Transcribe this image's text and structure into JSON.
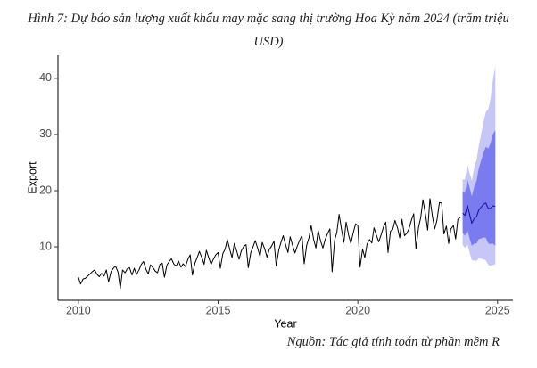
{
  "chart_data": {
    "type": "line",
    "title": "Hình 7: Dự báo sản lượng xuất khẩu may mặc sang thị trường Hoa Kỳ năm 2024 (trăm triệu USD)",
    "source": "Nguồn: Tác giả tính toán từ phần mềm R",
    "x_label": "Year",
    "y_label": "Export",
    "xlim": [
      2009.27,
      2025.55
    ],
    "ylim": [
      0.5,
      44.1
    ],
    "xticks": [
      2010,
      2015,
      2020,
      2025
    ],
    "yticks": [
      10,
      20,
      30,
      40
    ],
    "grid": false,
    "series": [
      {
        "color": "#000000",
        "x": [
          2010,
          2010.08,
          2010.17,
          2010.25,
          2010.33,
          2010.42,
          2010.5,
          2010.58,
          2010.67,
          2010.75,
          2010.83,
          2010.92,
          2011,
          2011.08,
          2011.17,
          2011.25,
          2011.33,
          2011.42,
          2011.5,
          2011.58,
          2011.67,
          2011.75,
          2011.83,
          2011.92,
          2012,
          2012.08,
          2012.17,
          2012.25,
          2012.33,
          2012.42,
          2012.5,
          2012.58,
          2012.67,
          2012.75,
          2012.83,
          2012.92,
          2013,
          2013.08,
          2013.17,
          2013.25,
          2013.33,
          2013.42,
          2013.5,
          2013.58,
          2013.67,
          2013.75,
          2013.83,
          2013.92,
          2014,
          2014.08,
          2014.17,
          2014.25,
          2014.33,
          2014.42,
          2014.5,
          2014.58,
          2014.67,
          2014.75,
          2014.83,
          2014.92,
          2015,
          2015.08,
          2015.17,
          2015.25,
          2015.33,
          2015.42,
          2015.5,
          2015.58,
          2015.67,
          2015.75,
          2015.83,
          2015.92,
          2016,
          2016.08,
          2016.17,
          2016.25,
          2016.33,
          2016.42,
          2016.5,
          2016.58,
          2016.67,
          2016.75,
          2016.83,
          2016.92,
          2017,
          2017.08,
          2017.17,
          2017.25,
          2017.33,
          2017.42,
          2017.5,
          2017.58,
          2017.67,
          2017.75,
          2017.83,
          2017.92,
          2018,
          2018.08,
          2018.17,
          2018.25,
          2018.33,
          2018.42,
          2018.5,
          2018.58,
          2018.67,
          2018.75,
          2018.83,
          2018.92,
          2019,
          2019.08,
          2019.17,
          2019.25,
          2019.33,
          2019.42,
          2019.5,
          2019.58,
          2019.67,
          2019.75,
          2019.83,
          2019.92,
          2020,
          2020.08,
          2020.17,
          2020.25,
          2020.33,
          2020.42,
          2020.5,
          2020.58,
          2020.67,
          2020.75,
          2020.83,
          2020.92,
          2021,
          2021.08,
          2021.17,
          2021.25,
          2021.33,
          2021.42,
          2021.5,
          2021.58,
          2021.67,
          2021.75,
          2021.83,
          2021.92,
          2022,
          2022.08,
          2022.17,
          2022.25,
          2022.33,
          2022.42,
          2022.5,
          2022.58,
          2022.67,
          2022.75,
          2022.83,
          2022.92,
          2023,
          2023.08,
          2023.17,
          2023.25,
          2023.33,
          2023.42,
          2023.5,
          2023.58,
          2023.67
        ],
        "values": [
          4.6,
          3.4,
          4.3,
          4.4,
          4.8,
          5.2,
          5.6,
          5.9,
          5.1,
          4.7,
          5.3,
          4.8,
          5.9,
          3.8,
          5.6,
          6.2,
          6.6,
          5.5,
          2.6,
          5.9,
          5.4,
          6.1,
          6.3,
          5.0,
          6.2,
          5.1,
          5.9,
          6.9,
          7.4,
          6.0,
          5.2,
          6.8,
          6.3,
          5.7,
          5.4,
          6.9,
          7.1,
          4.6,
          6.8,
          7.4,
          7.9,
          6.9,
          6.6,
          7.5,
          6.4,
          7.0,
          6.5,
          7.8,
          8.6,
          5.0,
          7.1,
          8.1,
          9.2,
          8.1,
          6.9,
          9.4,
          8.0,
          6.9,
          7.8,
          8.6,
          9.0,
          6.2,
          8.8,
          9.6,
          11.3,
          9.5,
          8.1,
          10.6,
          9.2,
          7.8,
          9.3,
          10.1,
          10.4,
          6.3,
          9.0,
          10.0,
          11.1,
          9.7,
          8.3,
          10.8,
          9.6,
          8.2,
          9.5,
          10.2,
          11.0,
          6.6,
          9.4,
          10.8,
          12.0,
          10.3,
          9.0,
          11.8,
          10.2,
          8.9,
          10.1,
          11.2,
          12.0,
          7.0,
          10.3,
          11.6,
          13.8,
          11.3,
          9.8,
          12.9,
          11.0,
          9.8,
          11.3,
          12.4,
          13.2,
          5.6,
          11.2,
          12.6,
          15.8,
          13.0,
          10.8,
          14.4,
          12.1,
          10.6,
          12.4,
          14.1,
          13.8,
          6.4,
          9.6,
          8.1,
          10.5,
          11.3,
          10.7,
          13.4,
          12.0,
          10.9,
          12.1,
          13.6,
          14.4,
          9.0,
          12.8,
          13.1,
          14.7,
          13.4,
          11.6,
          14.9,
          12.0,
          12.4,
          13.2,
          14.8,
          15.9,
          9.6,
          13.4,
          15.2,
          18.4,
          15.8,
          13.0,
          18.6,
          15.4,
          13.2,
          14.7,
          17.9,
          17.8,
          12.3,
          13.7,
          10.6,
          13.2,
          13.8,
          11.4,
          14.9,
          15.3
        ]
      },
      {
        "color": "#10109e",
        "x": [
          2023.75,
          2023.83,
          2023.92,
          2024,
          2024.08,
          2024.17,
          2024.25,
          2024.33,
          2024.42,
          2024.5,
          2024.58,
          2024.67,
          2024.75,
          2024.83,
          2024.92
        ],
        "values": [
          16.0,
          15.6,
          17.4,
          15.8,
          14.2,
          15.1,
          15.4,
          16.6,
          17.1,
          17.6,
          17.8,
          16.8,
          16.9,
          17.3,
          17.2
        ]
      }
    ],
    "intervals": [
      {
        "color": "#c6c6f7",
        "lower": [
          10.4,
          9.8,
          10.6,
          9.0,
          7.6,
          7.6,
          7.5,
          8.0,
          7.9,
          7.8,
          7.6,
          6.8,
          6.6,
          6.8,
          6.9
        ],
        "upper": [
          22.0,
          22.0,
          24.6,
          23.2,
          21.8,
          24.2,
          25.5,
          28.0,
          30.2,
          32.3,
          34.0,
          34.5,
          36.4,
          39.6,
          42.2
        ]
      },
      {
        "color": "#7b7bf0",
        "lower": [
          12.5,
          12.0,
          13.0,
          11.5,
          10.2,
          10.6,
          10.6,
          11.4,
          11.5,
          11.7,
          11.6,
          10.6,
          10.5,
          10.6,
          10.2
        ],
        "upper": [
          19.8,
          19.6,
          22.0,
          20.6,
          19.0,
          20.8,
          21.8,
          24.0,
          25.5,
          26.8,
          27.8,
          27.5,
          28.5,
          30.0,
          30.8
        ]
      }
    ]
  }
}
